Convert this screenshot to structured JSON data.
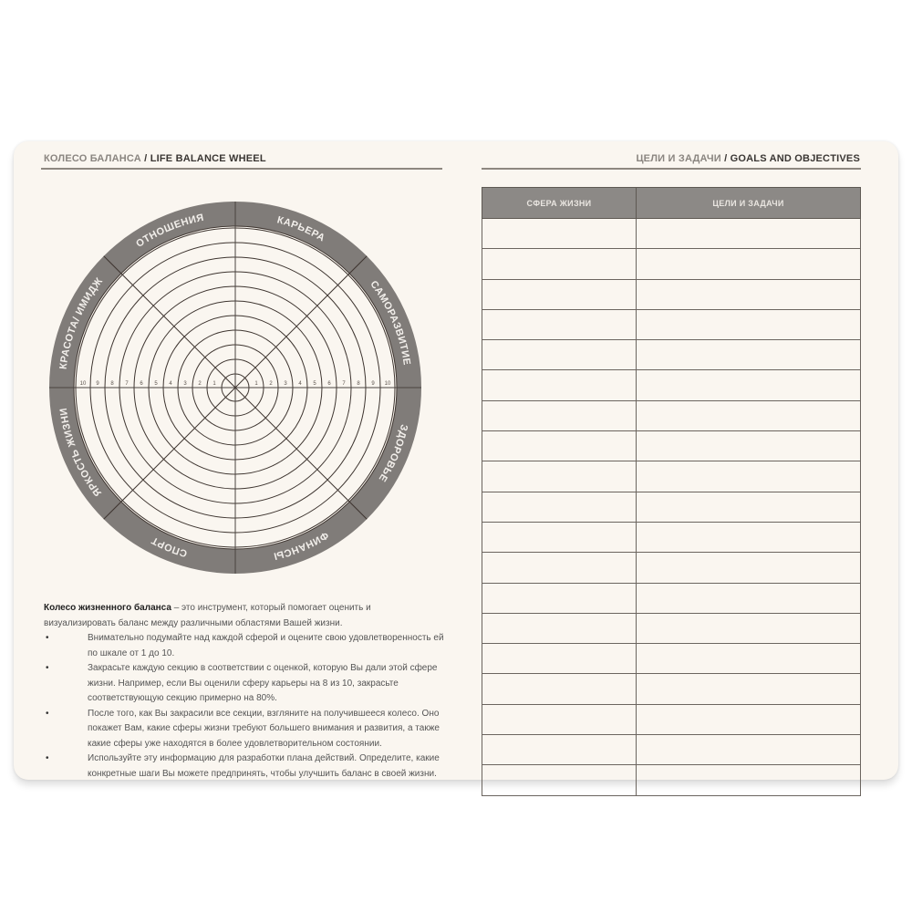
{
  "left_page": {
    "header_ru": "КОЛЕСО БАЛАНСА",
    "header_sep": " / ",
    "header_en": "LIFE BALANCE WHEEL",
    "wheel": {
      "sectors": [
        "КАРЬЕРА",
        "САМОРАЗВИТИЕ",
        "ЗДОРОВЬЕ",
        "ФИНАНСЫ",
        "СПОРТ",
        "ЯРКОСТЬ ЖИЗНИ",
        "КРАСОТА/ ИМИДЖ",
        "ОТНОШЕНИЯ"
      ],
      "scale": [
        "1",
        "2",
        "3",
        "4",
        "5",
        "6",
        "7",
        "8",
        "9",
        "10"
      ],
      "ring_color": "#807c79",
      "line_color": "#3e3530"
    },
    "description": {
      "intro_bold": "Колесо жизненного баланса",
      "intro_rest": " – это инструмент, который помогает оценить и визуализировать баланс между различными областями Вашей жизни.",
      "bullets": [
        "Внимательно подумайте над каждой сферой и оцените свою удовлетворенность ей по шкале от 1 до 10.",
        "Закрасьте каждую секцию в соответствии с оценкой, которую Вы дали этой сфере жизни. Например, если Вы оценили сферу карьеры на 8 из 10, закрасьте соответствующую секцию примерно на 80%.",
        "После того, как Вы закрасили все секции, взгляните на получившееся колесо. Оно покажет Вам, какие сферы жизни требуют большего внимания и развития, а также какие сферы уже находятся в более удовлетворительном состоянии.",
        "Используйте эту информацию для разработки плана действий. Определите, какие конкретные шаги Вы можете предпринять, чтобы улучшить баланс в своей жизни."
      ]
    }
  },
  "right_page": {
    "header_ru": "ЦЕЛИ И ЗАДАЧИ",
    "header_sep": " / ",
    "header_en": "GOALS AND OBJECTIVES",
    "table": {
      "columns": [
        "СФЕРА ЖИЗНИ",
        "ЦЕЛИ И ЗАДАЧИ"
      ],
      "empty_rows": 19
    }
  }
}
